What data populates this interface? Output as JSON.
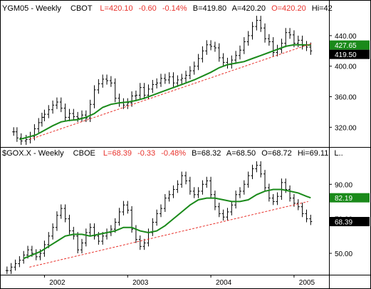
{
  "colors": {
    "price_bars": "#000000",
    "moving_average": "#1a8a1a",
    "trendline": "#e8322c",
    "header_red": "#e8322c",
    "frame": "#000000",
    "ma_tag_bg": "#1a8a1a",
    "last_tag_bg": "#000000",
    "tag_text": "#ffffff"
  },
  "header_top": {
    "symbol": "YGM05 - Weekly",
    "exchange": "CBOT",
    "last": "L=420.10",
    "change": "-0.60",
    "change_pct": "-0.14%",
    "bid": "B=419.80",
    "ask": "A=420.20",
    "open": "O=420.20",
    "high": "Hi=42"
  },
  "header_bottom": {
    "symbol": "$GOX.X - Weekly",
    "exchange": "CBOE",
    "last": "L=68.39",
    "change": "-0.33",
    "change_pct": "-0.48%",
    "bid": "B=68.32",
    "ask": "A=68.50",
    "open": "O=68.72",
    "high": "Hi=69.11",
    "more": "L.."
  },
  "x_axis": {
    "ticks": [
      "2002",
      "2003",
      "2004",
      "2005"
    ]
  },
  "chart_data": [
    {
      "type": "line",
      "title": "YGM05 - Weekly",
      "y_ticks": [
        "440.00",
        "400.00",
        "360.00",
        "320.00"
      ],
      "ylim": [
        296,
        468
      ],
      "xlim": [
        2001.5,
        2005.42
      ],
      "tags": {
        "ma_value": "427.65",
        "last_value": "419.50"
      },
      "series": [
        {
          "name": "",
          "kind": "price",
          "x": [
            2001.63,
            2001.67,
            2001.72,
            2001.78,
            2001.83,
            2001.88,
            2001.93,
            2001.97,
            2002.0,
            2002.05,
            2002.1,
            2002.15,
            2002.2,
            2002.25,
            2002.3,
            2002.35,
            2002.4,
            2002.45,
            2002.5,
            2002.55,
            2002.6,
            2002.65,
            2002.7,
            2002.75,
            2002.8,
            2002.85,
            2002.9,
            2002.95,
            2003.0,
            2003.05,
            2003.1,
            2003.15,
            2003.2,
            2003.25,
            2003.3,
            2003.35,
            2003.4,
            2003.45,
            2003.5,
            2003.55,
            2003.6,
            2003.65,
            2003.7,
            2003.75,
            2003.8,
            2003.85,
            2003.9,
            2003.95,
            2004.0,
            2004.05,
            2004.1,
            2004.15,
            2004.2,
            2004.25,
            2004.3,
            2004.35,
            2004.4,
            2004.45,
            2004.5,
            2004.55,
            2004.6,
            2004.65,
            2004.7,
            2004.75,
            2004.8,
            2004.85,
            2004.9,
            2004.95,
            2005.0,
            2005.05,
            2005.1,
            2005.15,
            2005.2
          ],
          "y": [
            314,
            306,
            302,
            304,
            308,
            318,
            326,
            333,
            337,
            343,
            349,
            353,
            345,
            333,
            338,
            334,
            332,
            336,
            332,
            350,
            369,
            377,
            383,
            381,
            378,
            358,
            352,
            349,
            352,
            361,
            362,
            372,
            362,
            370,
            376,
            378,
            384,
            382,
            386,
            378,
            382,
            384,
            388,
            394,
            400,
            410,
            420,
            428,
            426,
            424,
            411,
            405,
            402,
            408,
            414,
            421,
            432,
            440,
            452,
            460,
            450,
            436,
            432,
            418,
            422,
            430,
            444,
            441,
            430,
            434,
            427,
            425,
            420
          ]
        },
        {
          "name": "",
          "kind": "moving-average",
          "x": [
            2001.7,
            2001.8,
            2001.9,
            2002.0,
            2002.1,
            2002.2,
            2002.3,
            2002.4,
            2002.5,
            2002.6,
            2002.7,
            2002.8,
            2002.9,
            2003.0,
            2003.1,
            2003.2,
            2003.3,
            2003.4,
            2003.5,
            2003.6,
            2003.7,
            2003.8,
            2003.9,
            2004.0,
            2004.1,
            2004.2,
            2004.3,
            2004.4,
            2004.5,
            2004.6,
            2004.7,
            2004.8,
            2004.9,
            2005.0,
            2005.1,
            2005.2
          ],
          "y": [
            304,
            307,
            310,
            316,
            322,
            327,
            329,
            330,
            333,
            338,
            346,
            350,
            352,
            353,
            355,
            358,
            362,
            366,
            370,
            374,
            378,
            382,
            387,
            392,
            398,
            402,
            404,
            406,
            410,
            414,
            418,
            422,
            426,
            428,
            428,
            427.65
          ]
        },
        {
          "name": "",
          "kind": "trendline",
          "x": [
            2001.82,
            2005.22
          ],
          "y": [
            304,
            430
          ]
        }
      ]
    },
    {
      "type": "line",
      "title": "$GOX.X - Weekly",
      "y_ticks": [
        "90.00",
        "70.00",
        "50.00"
      ],
      "ylim": [
        38,
        105
      ],
      "xlim": [
        2001.5,
        2005.42
      ],
      "tags": {
        "ma_value": "82.19",
        "last_value": "68.39"
      },
      "series": [
        {
          "name": "",
          "kind": "price",
          "x": [
            2001.55,
            2001.6,
            2001.65,
            2001.7,
            2001.75,
            2001.8,
            2001.85,
            2001.9,
            2001.95,
            2002.0,
            2002.05,
            2002.1,
            2002.15,
            2002.2,
            2002.25,
            2002.3,
            2002.35,
            2002.4,
            2002.45,
            2002.5,
            2002.55,
            2002.6,
            2002.65,
            2002.7,
            2002.75,
            2002.8,
            2002.85,
            2002.9,
            2002.95,
            2003.0,
            2003.05,
            2003.1,
            2003.15,
            2003.2,
            2003.25,
            2003.3,
            2003.35,
            2003.4,
            2003.45,
            2003.5,
            2003.55,
            2003.6,
            2003.65,
            2003.7,
            2003.75,
            2003.8,
            2003.85,
            2003.9,
            2003.95,
            2004.0,
            2004.05,
            2004.1,
            2004.15,
            2004.2,
            2004.25,
            2004.3,
            2004.35,
            2004.4,
            2004.45,
            2004.5,
            2004.55,
            2004.6,
            2004.65,
            2004.7,
            2004.75,
            2004.8,
            2004.85,
            2004.9,
            2004.95,
            2005.0,
            2005.05,
            2005.1,
            2005.15,
            2005.2
          ],
          "y": [
            40,
            42,
            44,
            46,
            49,
            52,
            50,
            48,
            50,
            55,
            60,
            65,
            72,
            76,
            70,
            63,
            60,
            52,
            56,
            62,
            65,
            60,
            57,
            60,
            62,
            64,
            68,
            74,
            78,
            75,
            64,
            58,
            54,
            56,
            62,
            68,
            73,
            76,
            82,
            84,
            87,
            90,
            95,
            92,
            86,
            84,
            86,
            90,
            92,
            84,
            77,
            73,
            71,
            74,
            78,
            84,
            86,
            90,
            95,
            99,
            101,
            96,
            88,
            82,
            80,
            83,
            91,
            87,
            82,
            79,
            77,
            73,
            70,
            68.39
          ]
        },
        {
          "name": "",
          "kind": "moving-average",
          "x": [
            2001.75,
            2001.85,
            2001.95,
            2002.05,
            2002.15,
            2002.25,
            2002.35,
            2002.45,
            2002.55,
            2002.65,
            2002.75,
            2002.85,
            2002.95,
            2003.05,
            2003.15,
            2003.25,
            2003.35,
            2003.45,
            2003.55,
            2003.65,
            2003.75,
            2003.85,
            2003.95,
            2004.05,
            2004.15,
            2004.25,
            2004.35,
            2004.45,
            2004.55,
            2004.65,
            2004.75,
            2004.85,
            2004.95,
            2005.05,
            2005.15,
            2005.2
          ],
          "y": [
            47,
            49,
            51,
            54,
            57,
            60,
            61,
            61,
            60,
            61,
            62,
            63,
            65,
            65,
            63,
            62,
            63,
            66,
            70,
            74,
            78,
            81,
            82,
            82,
            81,
            80,
            80,
            81,
            84,
            86,
            87,
            87,
            86,
            85,
            83,
            82.19
          ]
        },
        {
          "name": "",
          "kind": "trendline",
          "x": [
            2001.82,
            2005.17
          ],
          "y": [
            42,
            80
          ]
        }
      ]
    }
  ]
}
